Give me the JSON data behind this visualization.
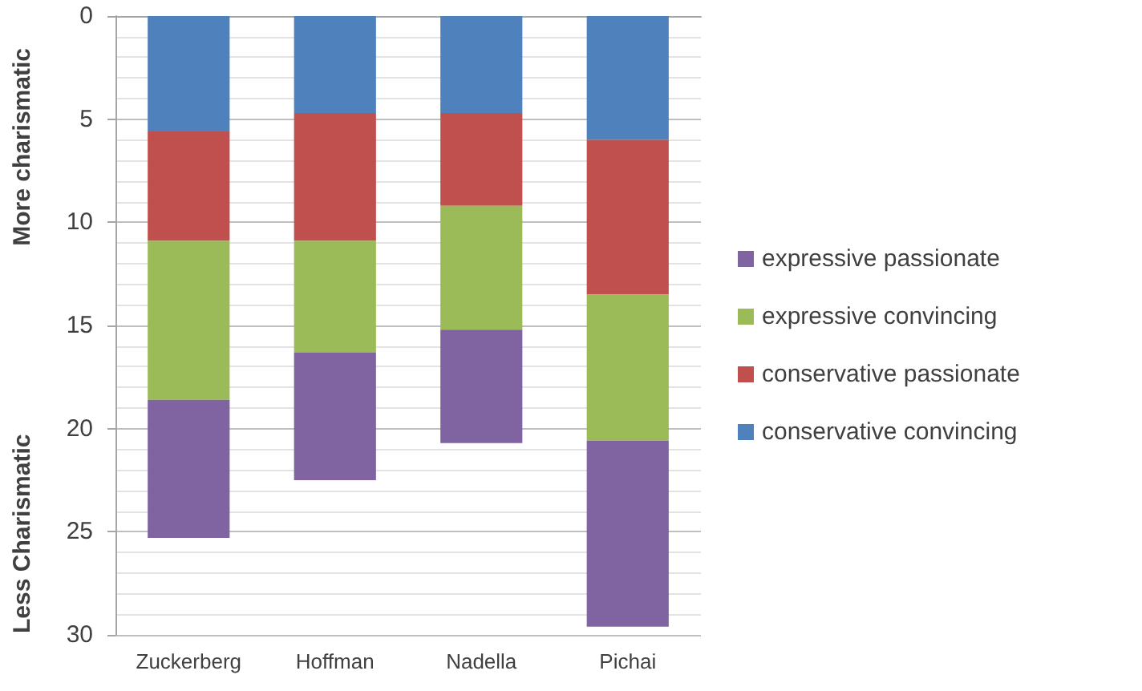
{
  "chart_data": {
    "type": "bar",
    "stacked": true,
    "categories": [
      "Zuckerberg",
      "Hoffman",
      "Nadella",
      "Pichai"
    ],
    "series": [
      {
        "name": "conservative convincing",
        "color": "#4f81bd",
        "values": [
          5.6,
          4.7,
          4.7,
          6.0
        ]
      },
      {
        "name": "conservative passionate",
        "color": "#c0504d",
        "values": [
          5.3,
          6.2,
          4.5,
          7.5
        ]
      },
      {
        "name": "expressive convincing",
        "color": "#9bbb59",
        "values": [
          7.7,
          5.4,
          6.0,
          7.1
        ]
      },
      {
        "name": "expressive passionate",
        "color": "#8064a2",
        "values": [
          6.7,
          6.2,
          5.5,
          9.0
        ]
      }
    ],
    "ylim": [
      30,
      0
    ],
    "yticks": [
      0,
      5,
      10,
      15,
      20,
      25,
      30
    ],
    "grid": "y",
    "legend": "right",
    "annotations": [
      "More charismatic",
      "Less Charismatic"
    ]
  }
}
